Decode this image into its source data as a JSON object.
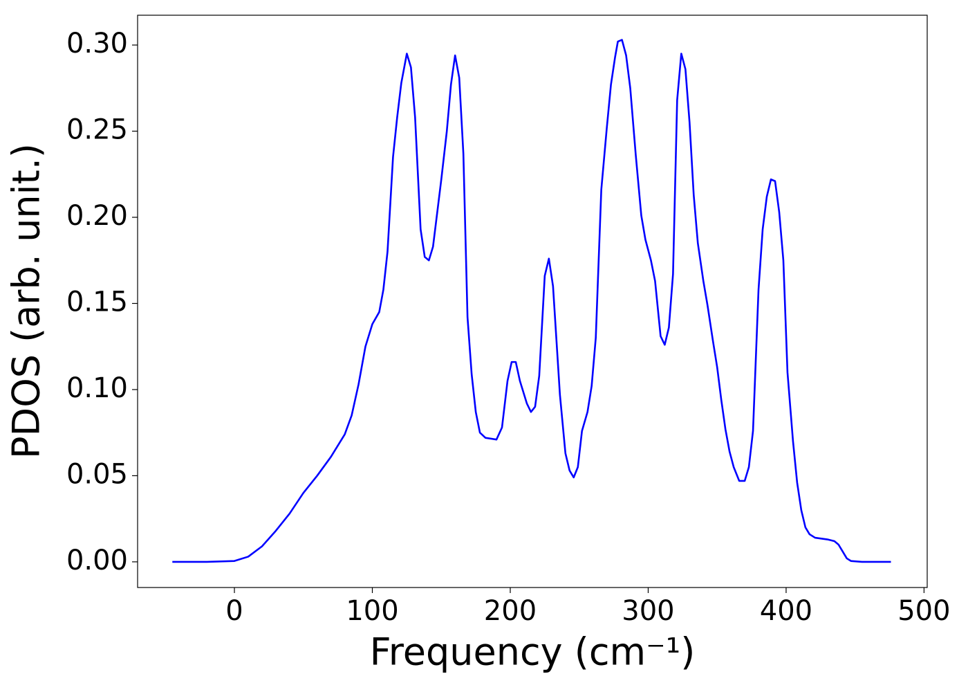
{
  "chart_data": {
    "type": "line",
    "xlabel": "Frequency (cm⁻¹)",
    "ylabel": "PDOS (arb. unit.)",
    "xlim": [
      -70.2,
      502.3
    ],
    "ylim": [
      -0.0149,
      0.3173
    ],
    "xticks": [
      0,
      100,
      200,
      300,
      400,
      500
    ],
    "yticks": [
      {
        "value": 0,
        "label": "0.00"
      },
      {
        "value": 0.05,
        "label": "0.05"
      },
      {
        "value": 0.1,
        "label": "0.10"
      },
      {
        "value": 0.15,
        "label": "0.15"
      },
      {
        "value": 0.2,
        "label": "0.20"
      },
      {
        "value": 0.25,
        "label": "0.25"
      },
      {
        "value": 0.3,
        "label": "0.30"
      }
    ],
    "grid": false,
    "x": [
      -45,
      -20,
      0,
      10,
      20,
      30,
      40,
      50,
      60,
      70,
      80,
      85,
      90,
      95,
      100,
      105,
      108,
      111,
      115,
      118,
      121,
      125,
      128,
      131,
      135,
      138,
      141,
      144,
      150,
      154,
      157,
      160,
      163,
      166,
      169,
      172,
      175,
      178,
      182,
      190,
      194,
      198,
      201,
      204,
      207,
      212,
      215,
      218,
      221,
      225,
      228,
      231,
      236,
      240,
      243,
      246,
      249,
      252,
      256,
      259,
      262,
      266,
      270,
      273,
      276,
      278,
      281,
      284,
      287,
      291,
      295,
      298,
      302,
      305,
      309,
      312,
      315,
      318,
      321,
      324,
      327,
      330,
      333,
      336,
      340,
      343,
      347,
      350,
      353,
      356,
      359,
      362,
      366,
      370,
      373,
      376,
      380,
      383,
      386,
      389,
      392,
      395,
      398,
      401,
      405,
      408,
      411,
      414,
      417,
      421,
      430,
      435,
      438,
      441,
      444,
      447,
      455,
      476
    ],
    "series": [
      {
        "color": "#0000ff",
        "values": [
          0,
          0,
          0.0005,
          0.003,
          0.009,
          0.018,
          0.028,
          0.04,
          0.05,
          0.061,
          0.074,
          0.085,
          0.103,
          0.125,
          0.138,
          0.145,
          0.158,
          0.18,
          0.235,
          0.258,
          0.278,
          0.295,
          0.287,
          0.258,
          0.193,
          0.177,
          0.175,
          0.183,
          0.222,
          0.25,
          0.277,
          0.294,
          0.281,
          0.237,
          0.142,
          0.109,
          0.087,
          0.075,
          0.072,
          0.071,
          0.078,
          0.105,
          0.116,
          0.116,
          0.105,
          0.092,
          0.087,
          0.09,
          0.108,
          0.166,
          0.176,
          0.16,
          0.097,
          0.063,
          0.053,
          0.049,
          0.055,
          0.076,
          0.087,
          0.102,
          0.13,
          0.216,
          0.252,
          0.277,
          0.293,
          0.302,
          0.303,
          0.294,
          0.275,
          0.236,
          0.201,
          0.187,
          0.175,
          0.163,
          0.131,
          0.126,
          0.136,
          0.167,
          0.268,
          0.295,
          0.286,
          0.255,
          0.213,
          0.185,
          0.163,
          0.149,
          0.128,
          0.113,
          0.094,
          0.077,
          0.064,
          0.055,
          0.047,
          0.047,
          0.055,
          0.076,
          0.158,
          0.193,
          0.212,
          0.222,
          0.221,
          0.203,
          0.175,
          0.11,
          0.07,
          0.046,
          0.03,
          0.02,
          0.016,
          0.014,
          0.013,
          0.012,
          0.01,
          0.006,
          0.002,
          0.0005,
          0,
          0
        ]
      }
    ]
  }
}
